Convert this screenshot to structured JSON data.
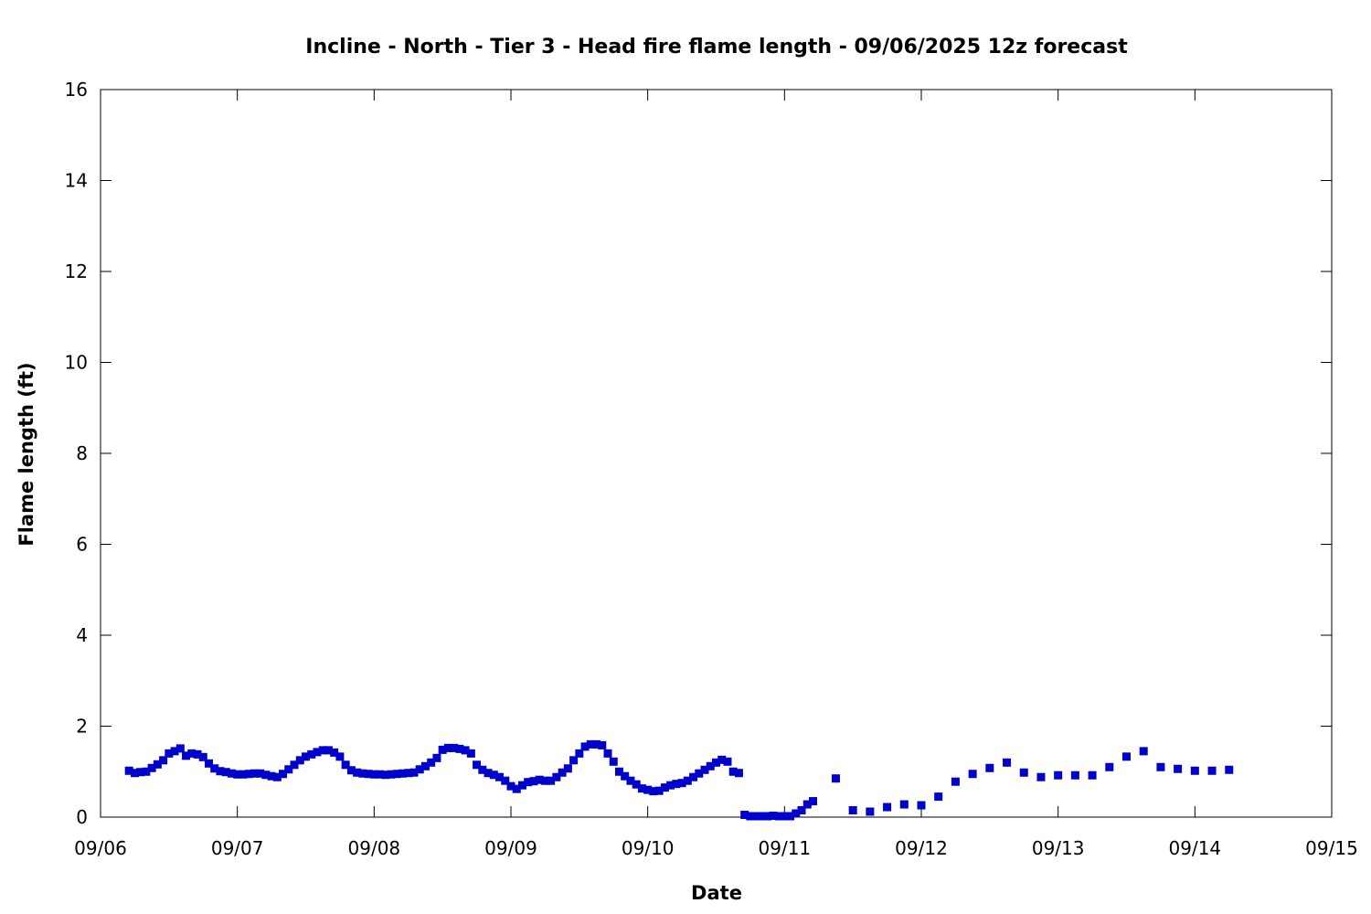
{
  "chart_data": {
    "type": "scatter",
    "title": "Incline - North - Tier 3 - Head fire flame length - 09/06/2025 12z forecast",
    "xlabel": "Date",
    "ylabel": "Flame length (ft)",
    "xlim": [
      "2025-09-06 00:00",
      "2025-09-15 00:00"
    ],
    "ylim": [
      0,
      16
    ],
    "x_tick_labels": [
      "09/06",
      "09/07",
      "09/08",
      "09/09",
      "09/10",
      "09/11",
      "09/12",
      "09/13",
      "09/14",
      "09/15"
    ],
    "y_tick_labels": [
      "0",
      "2",
      "4",
      "6",
      "8",
      "10",
      "12",
      "14",
      "16"
    ],
    "y_ticks": [
      0,
      2,
      4,
      6,
      8,
      10,
      12,
      14,
      16
    ],
    "grid": false,
    "legend": "none",
    "marker": "square",
    "marker_color": "#0000cc",
    "series": [
      {
        "points": [
          [
            "2025-09-06 05:00",
            1.02
          ],
          [
            "2025-09-06 06:00",
            0.97
          ],
          [
            "2025-09-06 07:00",
            0.99
          ],
          [
            "2025-09-06 08:00",
            1.0
          ],
          [
            "2025-09-06 09:00",
            1.08
          ],
          [
            "2025-09-06 10:00",
            1.16
          ],
          [
            "2025-09-06 11:00",
            1.25
          ],
          [
            "2025-09-06 12:00",
            1.4
          ],
          [
            "2025-09-06 13:00",
            1.45
          ],
          [
            "2025-09-06 14:00",
            1.51
          ],
          [
            "2025-09-06 15:00",
            1.35
          ],
          [
            "2025-09-06 16:00",
            1.4
          ],
          [
            "2025-09-06 17:00",
            1.38
          ],
          [
            "2025-09-06 18:00",
            1.32
          ],
          [
            "2025-09-06 19:00",
            1.18
          ],
          [
            "2025-09-06 20:00",
            1.07
          ],
          [
            "2025-09-06 21:00",
            1.01
          ],
          [
            "2025-09-06 22:00",
            0.99
          ],
          [
            "2025-09-06 23:00",
            0.96
          ],
          [
            "2025-09-07 00:00",
            0.94
          ],
          [
            "2025-09-07 01:00",
            0.94
          ],
          [
            "2025-09-07 02:00",
            0.95
          ],
          [
            "2025-09-07 03:00",
            0.96
          ],
          [
            "2025-09-07 04:00",
            0.96
          ],
          [
            "2025-09-07 05:00",
            0.93
          ],
          [
            "2025-09-07 06:00",
            0.9
          ],
          [
            "2025-09-07 07:00",
            0.88
          ],
          [
            "2025-09-07 08:00",
            0.95
          ],
          [
            "2025-09-07 09:00",
            1.05
          ],
          [
            "2025-09-07 10:00",
            1.15
          ],
          [
            "2025-09-07 11:00",
            1.25
          ],
          [
            "2025-09-07 12:00",
            1.33
          ],
          [
            "2025-09-07 13:00",
            1.38
          ],
          [
            "2025-09-07 14:00",
            1.43
          ],
          [
            "2025-09-07 15:00",
            1.47
          ],
          [
            "2025-09-07 16:00",
            1.47
          ],
          [
            "2025-09-07 17:00",
            1.42
          ],
          [
            "2025-09-07 18:00",
            1.33
          ],
          [
            "2025-09-07 19:00",
            1.15
          ],
          [
            "2025-09-07 20:00",
            1.03
          ],
          [
            "2025-09-07 21:00",
            0.98
          ],
          [
            "2025-09-07 22:00",
            0.96
          ],
          [
            "2025-09-07 23:00",
            0.95
          ],
          [
            "2025-09-08 00:00",
            0.94
          ],
          [
            "2025-09-08 01:00",
            0.94
          ],
          [
            "2025-09-08 02:00",
            0.93
          ],
          [
            "2025-09-08 03:00",
            0.94
          ],
          [
            "2025-09-08 04:00",
            0.95
          ],
          [
            "2025-09-08 05:00",
            0.96
          ],
          [
            "2025-09-08 06:00",
            0.97
          ],
          [
            "2025-09-08 07:00",
            0.98
          ],
          [
            "2025-09-08 08:00",
            1.05
          ],
          [
            "2025-09-08 09:00",
            1.12
          ],
          [
            "2025-09-08 10:00",
            1.2
          ],
          [
            "2025-09-08 11:00",
            1.3
          ],
          [
            "2025-09-08 12:00",
            1.48
          ],
          [
            "2025-09-08 13:00",
            1.52
          ],
          [
            "2025-09-08 14:00",
            1.52
          ],
          [
            "2025-09-08 15:00",
            1.5
          ],
          [
            "2025-09-08 16:00",
            1.47
          ],
          [
            "2025-09-08 17:00",
            1.4
          ],
          [
            "2025-09-08 18:00",
            1.15
          ],
          [
            "2025-09-08 19:00",
            1.04
          ],
          [
            "2025-09-08 20:00",
            0.97
          ],
          [
            "2025-09-08 21:00",
            0.93
          ],
          [
            "2025-09-08 22:00",
            0.88
          ],
          [
            "2025-09-08 23:00",
            0.8
          ],
          [
            "2025-09-09 00:00",
            0.68
          ],
          [
            "2025-09-09 01:00",
            0.62
          ],
          [
            "2025-09-09 02:00",
            0.7
          ],
          [
            "2025-09-09 03:00",
            0.77
          ],
          [
            "2025-09-09 04:00",
            0.79
          ],
          [
            "2025-09-09 05:00",
            0.82
          ],
          [
            "2025-09-09 06:00",
            0.8
          ],
          [
            "2025-09-09 07:00",
            0.8
          ],
          [
            "2025-09-09 08:00",
            0.88
          ],
          [
            "2025-09-09 09:00",
            0.98
          ],
          [
            "2025-09-09 10:00",
            1.07
          ],
          [
            "2025-09-09 11:00",
            1.25
          ],
          [
            "2025-09-09 12:00",
            1.4
          ],
          [
            "2025-09-09 13:00",
            1.55
          ],
          [
            "2025-09-09 14:00",
            1.6
          ],
          [
            "2025-09-09 15:00",
            1.6
          ],
          [
            "2025-09-09 16:00",
            1.58
          ],
          [
            "2025-09-09 17:00",
            1.4
          ],
          [
            "2025-09-09 18:00",
            1.22
          ],
          [
            "2025-09-09 19:00",
            1.0
          ],
          [
            "2025-09-09 20:00",
            0.9
          ],
          [
            "2025-09-09 21:00",
            0.8
          ],
          [
            "2025-09-09 22:00",
            0.72
          ],
          [
            "2025-09-09 23:00",
            0.63
          ],
          [
            "2025-09-10 00:00",
            0.6
          ],
          [
            "2025-09-10 01:00",
            0.57
          ],
          [
            "2025-09-10 02:00",
            0.58
          ],
          [
            "2025-09-10 03:00",
            0.65
          ],
          [
            "2025-09-10 04:00",
            0.7
          ],
          [
            "2025-09-10 05:00",
            0.73
          ],
          [
            "2025-09-10 06:00",
            0.75
          ],
          [
            "2025-09-10 07:00",
            0.8
          ],
          [
            "2025-09-10 08:00",
            0.88
          ],
          [
            "2025-09-10 09:00",
            0.96
          ],
          [
            "2025-09-10 10:00",
            1.04
          ],
          [
            "2025-09-10 11:00",
            1.12
          ],
          [
            "2025-09-10 12:00",
            1.2
          ],
          [
            "2025-09-10 13:00",
            1.26
          ],
          [
            "2025-09-10 14:00",
            1.22
          ],
          [
            "2025-09-10 15:00",
            1.0
          ],
          [
            "2025-09-10 16:00",
            0.97
          ],
          [
            "2025-09-10 17:00",
            0.05
          ],
          [
            "2025-09-10 18:00",
            0.02
          ],
          [
            "2025-09-10 19:00",
            0.02
          ],
          [
            "2025-09-10 20:00",
            0.02
          ],
          [
            "2025-09-10 21:00",
            0.02
          ],
          [
            "2025-09-10 22:00",
            0.03
          ],
          [
            "2025-09-10 23:00",
            0.02
          ],
          [
            "2025-09-11 00:00",
            0.02
          ],
          [
            "2025-09-11 01:00",
            0.02
          ],
          [
            "2025-09-11 02:00",
            0.08
          ],
          [
            "2025-09-11 03:00",
            0.15
          ],
          [
            "2025-09-11 04:00",
            0.28
          ],
          [
            "2025-09-11 05:00",
            0.35
          ],
          [
            "2025-09-11 09:00",
            0.85
          ],
          [
            "2025-09-11 12:00",
            0.15
          ],
          [
            "2025-09-11 15:00",
            0.12
          ],
          [
            "2025-09-11 18:00",
            0.22
          ],
          [
            "2025-09-11 21:00",
            0.28
          ],
          [
            "2025-09-12 00:00",
            0.26
          ],
          [
            "2025-09-12 03:00",
            0.45
          ],
          [
            "2025-09-12 06:00",
            0.78
          ],
          [
            "2025-09-12 09:00",
            0.95
          ],
          [
            "2025-09-12 12:00",
            1.08
          ],
          [
            "2025-09-12 15:00",
            1.2
          ],
          [
            "2025-09-12 18:00",
            0.98
          ],
          [
            "2025-09-12 21:00",
            0.88
          ],
          [
            "2025-09-13 00:00",
            0.92
          ],
          [
            "2025-09-13 03:00",
            0.92
          ],
          [
            "2025-09-13 06:00",
            0.92
          ],
          [
            "2025-09-13 09:00",
            1.1
          ],
          [
            "2025-09-13 12:00",
            1.33
          ],
          [
            "2025-09-13 15:00",
            1.45
          ],
          [
            "2025-09-13 18:00",
            1.1
          ],
          [
            "2025-09-13 21:00",
            1.06
          ],
          [
            "2025-09-14 00:00",
            1.02
          ],
          [
            "2025-09-14 03:00",
            1.02
          ],
          [
            "2025-09-14 06:00",
            1.04
          ]
        ]
      }
    ]
  }
}
